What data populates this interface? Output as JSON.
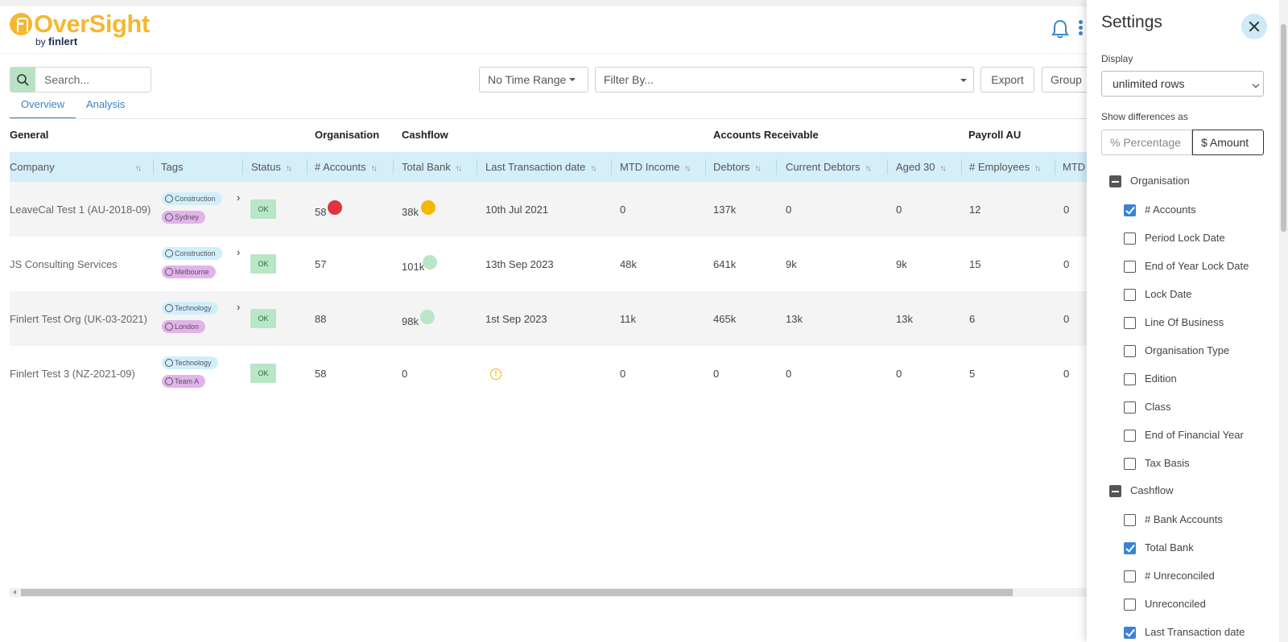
{
  "app": {
    "logo_name": "OverSight",
    "logo_by": "by",
    "logo_brand": "finlert"
  },
  "toolbar": {
    "search_placeholder": "Search...",
    "time_range": "No Time Range",
    "filter_placeholder": "Filter By...",
    "export": "Export",
    "group": "Group"
  },
  "tabs": [
    {
      "label": "Overview",
      "active": true
    },
    {
      "label": "Analysis",
      "active": false
    }
  ],
  "column_groups": [
    "General",
    "Organisation",
    "Cashflow",
    "Accounts Receivable",
    "Payroll AU"
  ],
  "columns": [
    "Company",
    "Tags",
    "Status",
    "# Accounts",
    "Total Bank",
    "Last Transaction date",
    "MTD Income",
    "Debtors",
    "Current Debtors",
    "Aged 30",
    "# Employees",
    "MTD"
  ],
  "rows": [
    {
      "company": "LeaveCal Test 1 (AU-2018-09)",
      "tag_industry": "Construction",
      "tag_location": "Sydney",
      "status": "OK",
      "accounts": "58",
      "accounts_indicator": "#e0343f",
      "total_bank": "38k",
      "bank_indicator": "#f5b800",
      "last_txn": "10th Jul 2021",
      "mtd_income": "0",
      "debtors": "137k",
      "current_debtors": "0",
      "aged30": "0",
      "employees": "12",
      "mtd": "0"
    },
    {
      "company": "JS Consulting Services",
      "tag_industry": "Construction",
      "tag_location": "Melbourne",
      "status": "OK",
      "accounts": "57",
      "total_bank": "101k",
      "bank_indicator": "#b9e6c6",
      "last_txn": "13th Sep 2023",
      "mtd_income": "48k",
      "debtors": "641k",
      "current_debtors": "9k",
      "aged30": "9k",
      "employees": "15",
      "mtd": "0"
    },
    {
      "company": "Finlert Test Org (UK-03-2021)",
      "tag_industry": "Technology",
      "tag_location": "London",
      "status": "OK",
      "accounts": "88",
      "total_bank": "98k",
      "bank_indicator": "#b9e6c6",
      "last_txn": "1st Sep 2023",
      "mtd_income": "11k",
      "debtors": "465k",
      "current_debtors": "13k",
      "aged30": "13k",
      "employees": "6",
      "mtd": "0"
    },
    {
      "company": "Finlert Test 3 (NZ-2021-09)",
      "tag_industry": "Technology",
      "tag_location": "Team A",
      "status": "OK",
      "accounts": "58",
      "total_bank": "0",
      "last_txn_warning": "!",
      "mtd_income": "0",
      "debtors": "0",
      "current_debtors": "0",
      "aged30": "0",
      "employees": "5",
      "mtd": "0"
    }
  ],
  "settings": {
    "title": "Settings",
    "display_label": "Display",
    "display_value": "unlimited rows",
    "differences_label": "Show differences as",
    "diff_percentage": "% Percentage",
    "diff_amount": "$ Amount",
    "groups": [
      {
        "label": "Organisation",
        "options": [
          {
            "label": "# Accounts",
            "checked": true
          },
          {
            "label": "Period Lock Date",
            "checked": false
          },
          {
            "label": "End of Year Lock Date",
            "checked": false
          },
          {
            "label": "Lock Date",
            "checked": false
          },
          {
            "label": "Line Of Business",
            "checked": false
          },
          {
            "label": "Organisation Type",
            "checked": false
          },
          {
            "label": "Edition",
            "checked": false
          },
          {
            "label": "Class",
            "checked": false
          },
          {
            "label": "End of Financial Year",
            "checked": false
          },
          {
            "label": "Tax Basis",
            "checked": false
          }
        ]
      },
      {
        "label": "Cashflow",
        "options": [
          {
            "label": "# Bank Accounts",
            "checked": false
          },
          {
            "label": "Total Bank",
            "checked": true
          },
          {
            "label": "# Unreconciled",
            "checked": false
          },
          {
            "label": "Unreconciled",
            "checked": false
          },
          {
            "label": "Last Transaction date",
            "checked": true
          }
        ]
      }
    ]
  }
}
